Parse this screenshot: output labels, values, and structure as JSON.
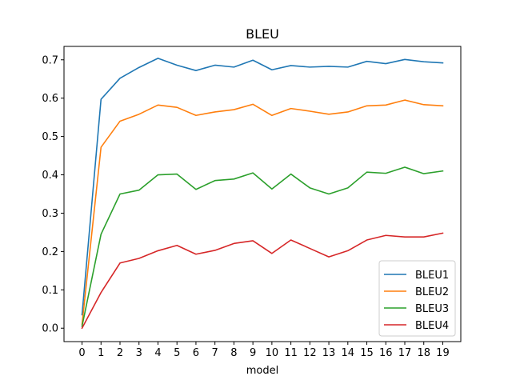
{
  "chart_data": {
    "type": "line",
    "title": "BLEU",
    "xlabel": "model",
    "ylabel": "",
    "x": [
      0,
      1,
      2,
      3,
      4,
      5,
      6,
      7,
      8,
      9,
      10,
      11,
      12,
      13,
      14,
      15,
      16,
      17,
      18,
      19
    ],
    "xlim": [
      -0.95,
      19.95
    ],
    "ylim": [
      -0.035,
      0.735
    ],
    "yticks": [
      0.0,
      0.1,
      0.2,
      0.3,
      0.4,
      0.5,
      0.6,
      0.7
    ],
    "ytick_labels": [
      "0.0",
      "0.1",
      "0.2",
      "0.3",
      "0.4",
      "0.5",
      "0.6",
      "0.7"
    ],
    "xtick_labels": [
      "0",
      "1",
      "2",
      "3",
      "4",
      "5",
      "6",
      "7",
      "8",
      "9",
      "10",
      "11",
      "12",
      "13",
      "14",
      "15",
      "16",
      "17",
      "18",
      "19"
    ],
    "grid": false,
    "legend_position": "lower-right",
    "series": [
      {
        "name": "BLEU1",
        "color": "#1f77b4",
        "values": [
          0.035,
          0.597,
          0.652,
          0.68,
          0.704,
          0.686,
          0.672,
          0.686,
          0.681,
          0.699,
          0.674,
          0.685,
          0.681,
          0.683,
          0.681,
          0.696,
          0.69,
          0.701,
          0.695,
          0.692
        ]
      },
      {
        "name": "BLEU2",
        "color": "#ff7f0e",
        "values": [
          0.01,
          0.472,
          0.54,
          0.558,
          0.582,
          0.576,
          0.555,
          0.564,
          0.57,
          0.584,
          0.555,
          0.573,
          0.566,
          0.558,
          0.564,
          0.58,
          0.582,
          0.595,
          0.583,
          0.58
        ]
      },
      {
        "name": "BLEU3",
        "color": "#2ca02c",
        "values": [
          0.005,
          0.245,
          0.35,
          0.36,
          0.4,
          0.402,
          0.362,
          0.385,
          0.389,
          0.405,
          0.363,
          0.402,
          0.366,
          0.35,
          0.366,
          0.407,
          0.404,
          0.42,
          0.403,
          0.41
        ]
      },
      {
        "name": "BLEU4",
        "color": "#d62728",
        "values": [
          0.0,
          0.093,
          0.17,
          0.182,
          0.202,
          0.216,
          0.193,
          0.203,
          0.221,
          0.228,
          0.195,
          0.23,
          0.208,
          0.186,
          0.202,
          0.23,
          0.242,
          0.238,
          0.238,
          0.248
        ]
      }
    ]
  }
}
